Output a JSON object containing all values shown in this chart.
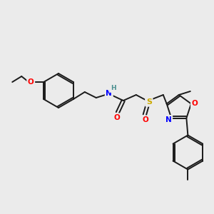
{
  "background_color": "#ebebeb",
  "bond_color": "#1a1a1a",
  "atom_colors": {
    "O": "#ff0000",
    "N": "#0000ff",
    "S": "#ccaa00",
    "H": "#4a9090",
    "C": "#1a1a1a"
  },
  "figsize": [
    3.0,
    3.0
  ],
  "dpi": 100,
  "lw": 1.4
}
